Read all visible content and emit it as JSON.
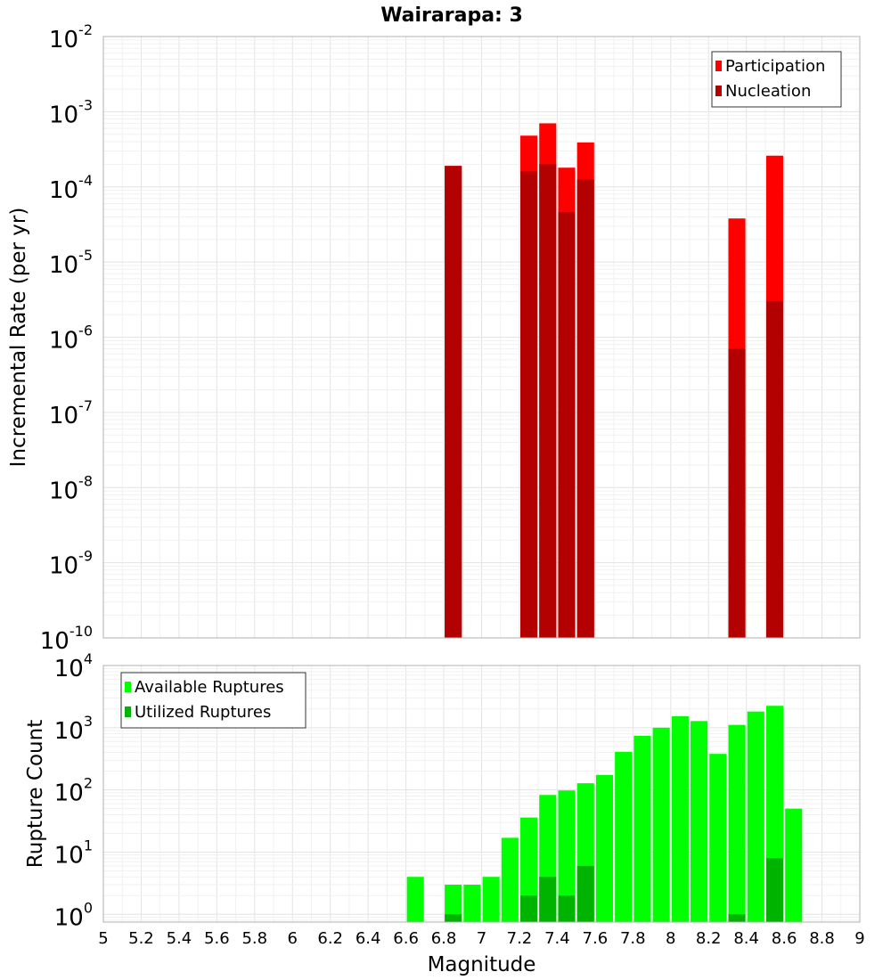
{
  "title": "Wairarapa: 3",
  "colors": {
    "participation": "#ff0000",
    "nucleation": "#b30000",
    "available": "#00ff00",
    "utilized": "#00b300",
    "grid_major": "#e3e3e3",
    "grid_minor": "#f1f1f1",
    "frame": "#b0b0b0"
  },
  "chart_data": [
    {
      "type": "bar",
      "name": "rate",
      "ylabel": "Incremental Rate (per yr)",
      "xlabel": "",
      "yscale": "log",
      "ylim": [
        1e-10,
        0.01
      ],
      "xlim": [
        5,
        9
      ],
      "grid": true,
      "legend_position": "top-right",
      "y_tick_exponents": [
        -10,
        -9,
        -8,
        -7,
        -6,
        -5,
        -4,
        -3,
        -2
      ],
      "series": [
        {
          "name": "Participation",
          "x": [
            6.85,
            7.25,
            7.35,
            7.45,
            7.55,
            8.35,
            8.55
          ],
          "values": [
            0.00019,
            0.00048,
            0.0007,
            0.00018,
            0.00039,
            3.8e-05,
            0.00026
          ]
        },
        {
          "name": "Nucleation",
          "x": [
            6.85,
            7.25,
            7.35,
            7.45,
            7.55,
            8.35,
            8.55
          ],
          "values": [
            0.00019,
            0.00016,
            0.0002,
            4.6e-05,
            0.000125,
            7e-07,
            3e-06
          ]
        }
      ]
    },
    {
      "type": "bar",
      "name": "counts",
      "ylabel": "Rupture Count",
      "xlabel": "Magnitude",
      "yscale": "log",
      "ylim": [
        0.75,
        10000
      ],
      "xlim": [
        5,
        9
      ],
      "grid": true,
      "legend_position": "top-left",
      "y_tick_exponents": [
        0,
        1,
        2,
        3,
        4
      ],
      "x_ticks": [
        "5",
        "5.2",
        "5.4",
        "5.6",
        "5.8",
        "6",
        "6.2",
        "6.4",
        "6.6",
        "6.8",
        "7",
        "7.2",
        "7.4",
        "7.6",
        "7.8",
        "8",
        "8.2",
        "8.4",
        "8.6",
        "8.8",
        "9"
      ],
      "series": [
        {
          "name": "Available Ruptures",
          "x": [
            6.65,
            6.85,
            6.95,
            7.05,
            7.15,
            7.25,
            7.35,
            7.45,
            7.55,
            7.65,
            7.75,
            7.85,
            7.95,
            8.05,
            8.15,
            8.25,
            8.35,
            8.45,
            8.55,
            8.65
          ],
          "values": [
            4,
            3,
            3,
            4,
            17,
            36,
            83,
            98,
            128,
            174,
            410,
            740,
            1000,
            1530,
            1280,
            380,
            1110,
            1820,
            2250,
            50
          ]
        },
        {
          "name": "Utilized Ruptures",
          "x": [
            6.85,
            7.25,
            7.35,
            7.45,
            7.55,
            8.35,
            8.55
          ],
          "values": [
            1,
            2,
            4,
            2,
            6,
            1,
            8
          ]
        }
      ]
    }
  ]
}
